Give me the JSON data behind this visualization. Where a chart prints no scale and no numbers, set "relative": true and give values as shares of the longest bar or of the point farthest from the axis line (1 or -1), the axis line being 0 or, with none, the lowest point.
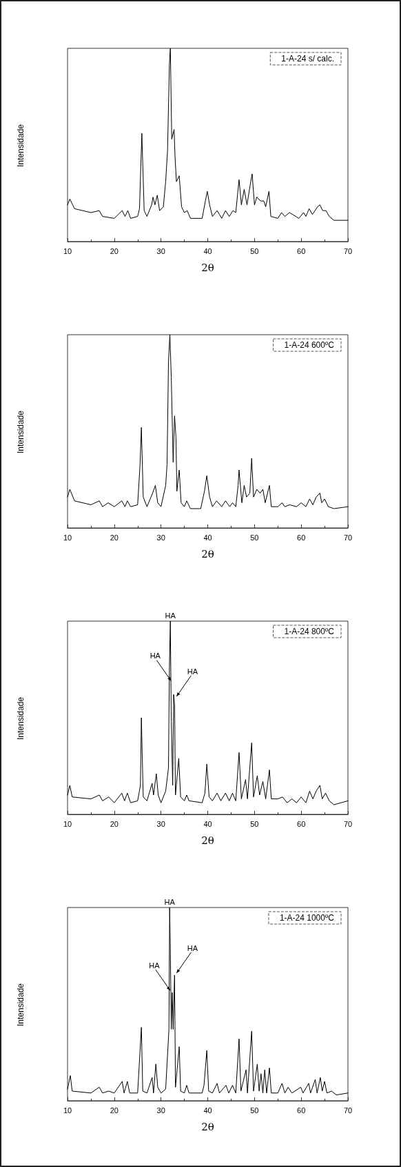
{
  "chart_data": [
    {
      "type": "line",
      "relative": true,
      "xlabel": "2θ",
      "ylabel": "Intensidade",
      "xlim": [
        10,
        70
      ],
      "xticks": [
        10,
        20,
        30,
        40,
        50,
        60,
        70
      ],
      "legend": "top right",
      "marker": "none",
      "x": [
        10,
        10.5,
        11.5,
        15,
        16.8,
        17.5,
        20,
        21.7,
        22.3,
        22.9,
        23.5,
        25,
        25.4,
        25.9,
        26.4,
        27,
        28,
        28.3,
        28.7,
        29.2,
        29.7,
        30.5,
        31.0,
        31.4,
        31.8,
        32.0,
        32.3,
        32.8,
        33.0,
        33.3,
        33.9,
        34.4,
        35,
        35.6,
        36.3,
        38.8,
        39.5,
        39.9,
        40.4,
        41,
        42,
        43,
        43.8,
        44.6,
        45.4,
        46,
        46.7,
        47.2,
        47.8,
        48.4,
        49.2,
        49.5,
        50,
        50.5,
        51.3,
        52,
        52.4,
        53.1,
        53.5,
        55,
        55.8,
        56.5,
        57.5,
        59.5,
        60.5,
        61,
        61.7,
        62.4,
        63.5,
        64,
        64.6,
        65.3,
        66,
        67,
        70
      ],
      "series": [
        {
          "name": "1-A-24 s/ calc.",
          "color": "#000000",
          "values": [
            0.19,
            0.22,
            0.17,
            0.15,
            0.16,
            0.13,
            0.12,
            0.16,
            0.13,
            0.16,
            0.12,
            0.13,
            0.17,
            0.56,
            0.16,
            0.13,
            0.19,
            0.23,
            0.19,
            0.24,
            0.16,
            0.18,
            0.31,
            0.47,
            0.92,
            1,
            0.53,
            0.58,
            0.44,
            0.31,
            0.34,
            0.18,
            0.15,
            0.16,
            0.12,
            0.12,
            0.21,
            0.26,
            0.19,
            0.13,
            0.16,
            0.12,
            0.16,
            0.13,
            0.16,
            0.15,
            0.32,
            0.19,
            0.27,
            0.19,
            0.31,
            0.35,
            0.19,
            0.23,
            0.21,
            0.21,
            0.18,
            0.26,
            0.13,
            0.12,
            0.15,
            0.13,
            0.15,
            0.12,
            0.15,
            0.13,
            0.17,
            0.14,
            0.18,
            0.19,
            0.16,
            0.16,
            0.13,
            0.11,
            0.11
          ]
        }
      ]
    },
    {
      "type": "line",
      "relative": true,
      "xlabel": "2θ",
      "ylabel": "Intensidade",
      "xlim": [
        10,
        70
      ],
      "xticks": [
        10,
        20,
        30,
        40,
        50,
        60,
        70
      ],
      "legend": "top right",
      "marker": "none",
      "x": [
        10,
        10.5,
        11.5,
        15,
        16.8,
        17.5,
        18.7,
        20,
        21.6,
        22.3,
        22.8,
        23.5,
        25,
        25.5,
        25.8,
        26.2,
        27,
        28.2,
        28.5,
        28.8,
        29.3,
        30,
        31,
        31.3,
        31.6,
        31.9,
        32.2,
        32.6,
        32.9,
        33.2,
        33.4,
        33.9,
        34.3,
        35,
        35.5,
        36.3,
        38.5,
        39.3,
        39.8,
        40.4,
        41,
        41.9,
        43,
        43.8,
        44.7,
        45.3,
        46,
        46.5,
        46.7,
        47.3,
        47.8,
        48.3,
        49,
        49.4,
        49.8,
        50.5,
        51.2,
        51.8,
        52.3,
        53.2,
        53.6,
        55,
        55.9,
        56.5,
        57.5,
        59,
        60,
        61,
        61.8,
        62.5,
        63.2,
        64,
        64.4,
        65,
        65.8,
        67,
        70
      ],
      "series": [
        {
          "name": "1-A-24 600ºC",
          "color": "#000000",
          "values": [
            0.16,
            0.2,
            0.14,
            0.12,
            0.14,
            0.11,
            0.13,
            0.11,
            0.14,
            0.11,
            0.14,
            0.11,
            0.12,
            0.32,
            0.52,
            0.16,
            0.11,
            0.18,
            0.2,
            0.22,
            0.13,
            0.11,
            0.22,
            0.33,
            0.86,
            1,
            0.78,
            0.34,
            0.58,
            0.47,
            0.19,
            0.3,
            0.13,
            0.11,
            0.14,
            0.1,
            0.1,
            0.19,
            0.27,
            0.16,
            0.11,
            0.14,
            0.11,
            0.14,
            0.11,
            0.13,
            0.11,
            0.22,
            0.3,
            0.13,
            0.22,
            0.16,
            0.18,
            0.36,
            0.16,
            0.2,
            0.18,
            0.2,
            0.13,
            0.22,
            0.11,
            0.11,
            0.13,
            0.11,
            0.12,
            0.11,
            0.13,
            0.11,
            0.15,
            0.12,
            0.16,
            0.18,
            0.13,
            0.15,
            0.11,
            0.1,
            0.11
          ]
        }
      ]
    },
    {
      "type": "line",
      "relative": true,
      "xlabel": "2θ",
      "ylabel": "Intensidade",
      "xlim": [
        10,
        70
      ],
      "xticks": [
        10,
        20,
        30,
        40,
        50,
        60,
        70
      ],
      "legend": "top right",
      "marker": "none",
      "annotations": [
        {
          "text": "HA",
          "x": 32.0,
          "y": 1
        },
        {
          "text": "HA",
          "x": 32.6,
          "y": 0.68
        },
        {
          "text": "HA",
          "x": 32.9,
          "y": 0.6
        }
      ],
      "x": [
        10,
        10.5,
        11,
        15,
        16.8,
        17.5,
        18.8,
        20,
        21.6,
        22.2,
        22.8,
        23.5,
        25,
        25.6,
        25.8,
        26.2,
        27,
        28.1,
        28.4,
        29,
        29.4,
        30,
        31,
        31.6,
        31.8,
        32.0,
        32.2,
        32.5,
        32.7,
        32.9,
        33.1,
        33.8,
        34.2,
        35,
        35.5,
        36,
        38.8,
        39.4,
        39.8,
        40.3,
        41,
        42,
        42.8,
        43.8,
        44.6,
        45.3,
        46,
        46.7,
        47.2,
        48.1,
        48.5,
        49.4,
        49.8,
        50.6,
        51.1,
        51.8,
        52.4,
        53.2,
        53.6,
        55,
        56,
        57,
        58,
        59,
        60,
        61,
        61.8,
        62.5,
        63.2,
        64,
        64.5,
        65.2,
        66,
        67,
        70
      ],
      "series": [
        {
          "name": "1-A-24 800ºC",
          "color": "#000000",
          "values": [
            0.1,
            0.15,
            0.09,
            0.08,
            0.1,
            0.07,
            0.09,
            0.06,
            0.11,
            0.07,
            0.11,
            0.06,
            0.07,
            0.15,
            0.5,
            0.09,
            0.07,
            0.16,
            0.1,
            0.21,
            0.1,
            0.06,
            0.12,
            0.24,
            0.76,
            1,
            0.48,
            0.15,
            0.62,
            0.57,
            0.1,
            0.29,
            0.09,
            0.07,
            0.1,
            0.07,
            0.06,
            0.11,
            0.26,
            0.09,
            0.07,
            0.11,
            0.07,
            0.11,
            0.07,
            0.11,
            0.07,
            0.32,
            0.08,
            0.18,
            0.08,
            0.37,
            0.09,
            0.2,
            0.1,
            0.17,
            0.08,
            0.23,
            0.08,
            0.08,
            0.09,
            0.06,
            0.08,
            0.06,
            0.09,
            0.06,
            0.12,
            0.08,
            0.12,
            0.15,
            0.08,
            0.11,
            0.07,
            0.05,
            0.07
          ]
        }
      ]
    },
    {
      "type": "line",
      "relative": true,
      "xlabel": "2θ",
      "ylabel": "Intensidade",
      "xlim": [
        10,
        70
      ],
      "xticks": [
        10,
        20,
        30,
        40,
        50,
        60,
        70
      ],
      "legend": "top right",
      "marker": "none",
      "annotations": [
        {
          "text": "HA",
          "x": 31.85,
          "y": 1
        },
        {
          "text": "HA",
          "x": 32.4,
          "y": 0.56
        },
        {
          "text": "HA",
          "x": 32.9,
          "y": 0.65
        }
      ],
      "x": [
        10,
        10.6,
        11,
        15,
        16.8,
        17.5,
        18.8,
        20,
        21.7,
        22.1,
        22.8,
        23.3,
        25,
        25.8,
        26.1,
        27,
        28.1,
        28.4,
        28.9,
        29.3,
        30,
        31,
        31.7,
        31.85,
        32.0,
        32.2,
        32.4,
        32.6,
        32.9,
        33.1,
        33.9,
        34.2,
        35,
        35.5,
        36,
        38.8,
        39.2,
        39.8,
        40.2,
        41,
        42,
        42.5,
        43.9,
        44.5,
        45.3,
        46,
        46.7,
        47.1,
        48.2,
        48.5,
        49.4,
        49.8,
        50.6,
        51,
        51.4,
        51.8,
        52.2,
        52.6,
        53.2,
        53.6,
        55,
        55.9,
        56.5,
        57.2,
        58,
        59.9,
        60.4,
        61.6,
        62,
        63,
        63.4,
        64.1,
        64.5,
        65,
        65.5,
        66.5,
        67.5,
        70
      ],
      "series": [
        {
          "name": "1-A-24 1000ºC",
          "color": "#000000",
          "values": [
            0.06,
            0.13,
            0.05,
            0.04,
            0.07,
            0.04,
            0.05,
            0.04,
            0.1,
            0.04,
            0.1,
            0.04,
            0.04,
            0.38,
            0.05,
            0.04,
            0.12,
            0.04,
            0.19,
            0.07,
            0.04,
            0.06,
            0.37,
            1,
            0.77,
            0.37,
            0.56,
            0.37,
            0.65,
            0.07,
            0.28,
            0.05,
            0.04,
            0.08,
            0.04,
            0.04,
            0.08,
            0.26,
            0.05,
            0.04,
            0.09,
            0.04,
            0.08,
            0.04,
            0.08,
            0.04,
            0.32,
            0.05,
            0.16,
            0.04,
            0.36,
            0.05,
            0.19,
            0.05,
            0.14,
            0.04,
            0.16,
            0.04,
            0.17,
            0.04,
            0.04,
            0.09,
            0.04,
            0.07,
            0.04,
            0.07,
            0.04,
            0.09,
            0.04,
            0.11,
            0.04,
            0.12,
            0.05,
            0.1,
            0.04,
            0.05,
            0.03,
            0.04
          ]
        }
      ]
    }
  ]
}
